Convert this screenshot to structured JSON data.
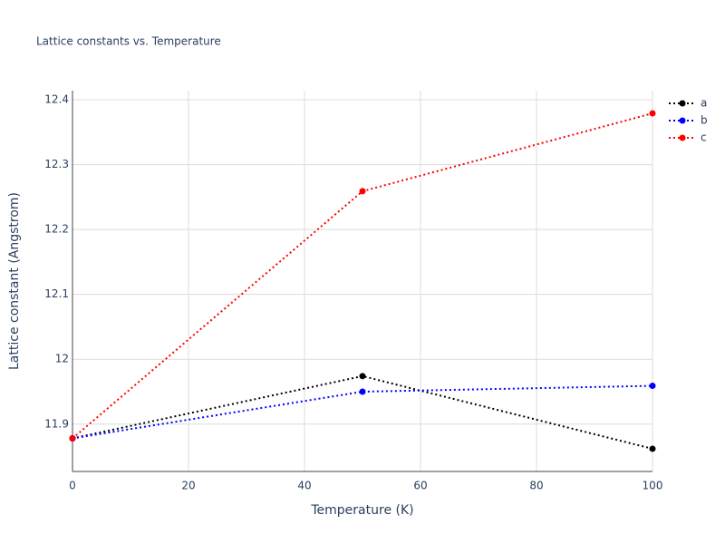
{
  "chart_data": {
    "type": "line",
    "title": "Lattice constants vs. Temperature",
    "x_label": "Temperature (K)",
    "y_label": "Lattice constant (Angstrom)",
    "x": [
      0,
      50,
      100
    ],
    "series": [
      {
        "name": "a",
        "color": "#000000",
        "values": [
          11.878,
          11.974,
          11.862
        ]
      },
      {
        "name": "b",
        "color": "#0000ff",
        "values": [
          11.878,
          11.95,
          11.959
        ]
      },
      {
        "name": "c",
        "color": "#ff0000",
        "values": [
          11.878,
          12.259,
          12.379
        ]
      }
    ],
    "xlim": [
      0,
      100
    ],
    "xticks": [
      0,
      20,
      40,
      60,
      80,
      100
    ],
    "ylim": [
      11.827,
      12.414
    ],
    "yticks": [
      11.9,
      12,
      12.1,
      12.2,
      12.3,
      12.4
    ],
    "grid": true,
    "legend": "top-right"
  }
}
